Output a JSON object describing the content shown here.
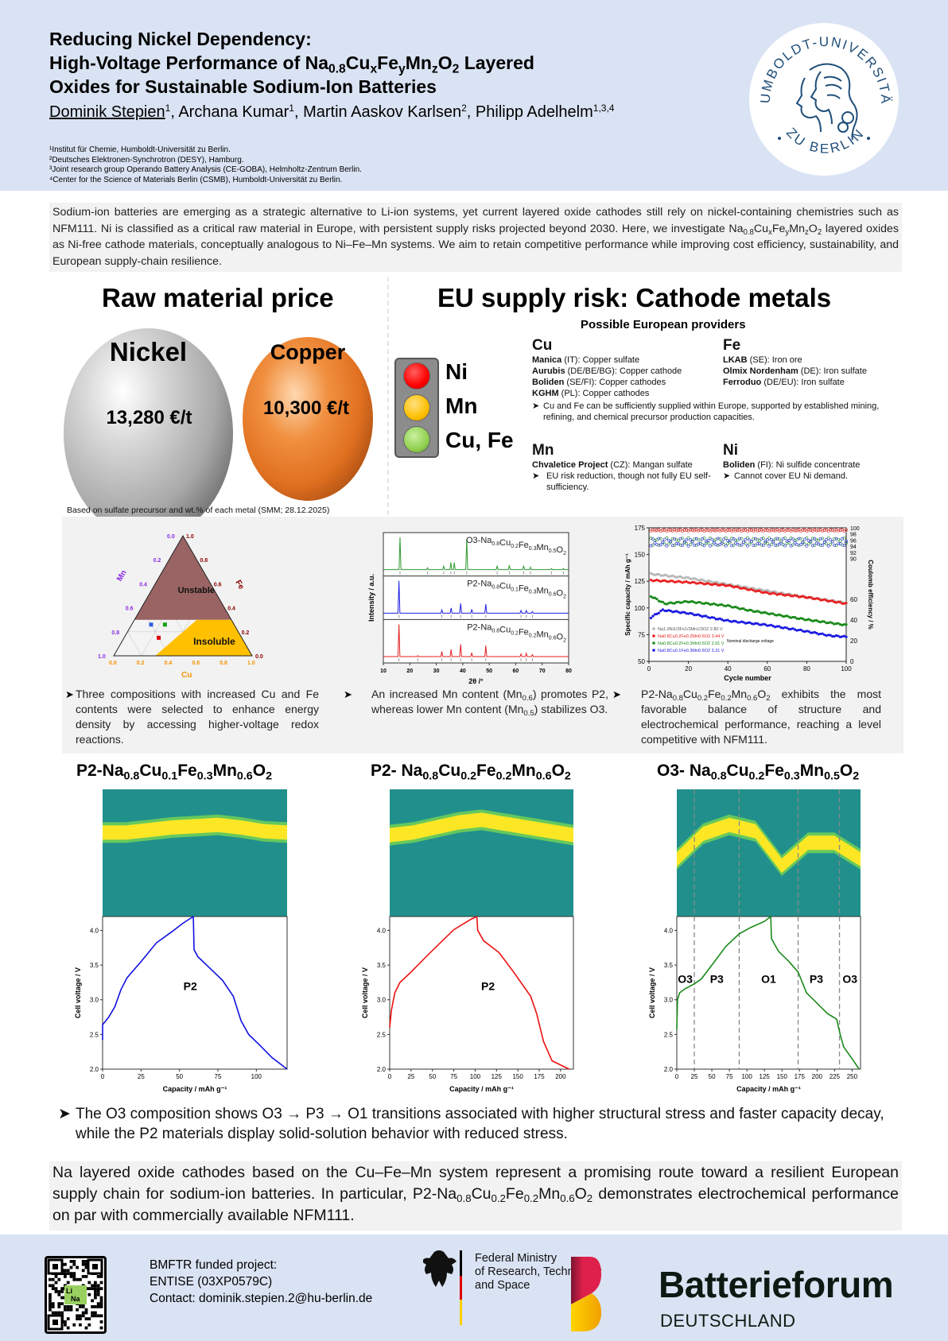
{
  "header": {
    "title_line1": "Reducing Nickel Dependency:",
    "title_line2_pre": "High-Voltage Performance of Na",
    "title_line2_post": " Layered",
    "title_line3": "Oxides for Sustainable Sodium-Ion Batteries",
    "formula": {
      "na": "0.8",
      "x": "x",
      "y": "y",
      "z": "z",
      "o": "2"
    },
    "authors": [
      {
        "name": "Dominik Stepien",
        "sup": "1",
        "presenting": true
      },
      {
        "name": "Archana Kumar",
        "sup": "1"
      },
      {
        "name": "Martin Aaskov Karlsen",
        "sup": "2"
      },
      {
        "name": "Philipp Adelhelm",
        "sup": "1,3,4"
      }
    ],
    "affiliations": [
      "¹Institut für Chemie, Humboldt-Universität zu Berlin.",
      "²Deutsches Elektronen-Synchrotron (DESY), Hamburg.",
      "³Joint research group Operando Battery Analysis (CE-GOBA), Helmholtz-Zentrum Berlin.",
      "⁴Center for the Science of Materials Berlin (CSMB), Humboldt-Universität zu Berlin."
    ],
    "seal_top_text": "HUMBOLDT-UNIVERSITÄT",
    "seal_bottom_text": "ZU BERLIN",
    "seal_icon": "university-seal-icon"
  },
  "intro": {
    "part1": "Sodium-ion batteries are emerging as a strategic alternative to Li-ion systems, yet current layered oxide cathodes still rely on nickel-containing chemistries such as NFM111. Ni is classified as a critical raw material in Europe, with persistent supply risks projected beyond 2030. Here, we investigate Na",
    "part2": " layered oxides as Ni-free cathode materials, conceptually analogous to Ni–Fe–Mn systems. We aim to retain competitive performance while improving cost efficiency, sustainability, and European supply-chain resilience."
  },
  "price": {
    "heading": "Raw material price",
    "nickel_label": "Nickel",
    "nickel_price": "13,280 €/t",
    "copper_label": "Copper",
    "copper_price": "10,300  €/t",
    "note": "Based on sulfate precursor and wt.% of each metal (SMM; 28.12.2025)"
  },
  "supply": {
    "heading": "EU supply risk: Cathode metals",
    "traffic_light": [
      {
        "label": "Ni",
        "color": "#ff0000",
        "risk": "high"
      },
      {
        "label": "Mn",
        "color": "#ffc000",
        "risk": "medium"
      },
      {
        "label": "Cu, Fe",
        "color": "#92d050",
        "risk": "low"
      }
    ],
    "providers_title": "Possible European providers",
    "cu": {
      "element": "Cu",
      "entries": [
        {
          "company": "Manica",
          "detail": " (IT): Copper sulfate"
        },
        {
          "company": "Aurubis",
          "detail": " (DE/BE/BG): Copper cathode"
        },
        {
          "company": "Boliden",
          "detail": " (SE/FI): Copper cathodes"
        },
        {
          "company": "KGHM",
          "detail": " (PL): Copper cathodes"
        }
      ],
      "bullet": "Cu and Fe can be sufficiently supplied within Europe, supported by established mining, refining, and chemical precursor production capacities."
    },
    "fe": {
      "element": "Fe",
      "entries": [
        {
          "company": "LKAB",
          "detail": " (SE): Iron ore"
        },
        {
          "company": "Olmix Nordenham",
          "detail": " (DE): Iron sulfate"
        },
        {
          "company": "Ferroduo",
          "detail": " (DE/EU): Iron sulfate"
        }
      ]
    },
    "mn": {
      "element": "Mn",
      "entries": [
        {
          "company": "Chvaletice Project",
          "detail": " (CZ): Mangan sulfate"
        }
      ],
      "bullet": "EU risk reduction, though not fully EU self-sufficiency."
    },
    "ni": {
      "element": "Ni",
      "entries": [
        {
          "company": "Boliden",
          "detail": " (FI): Ni sulfide concentrate"
        }
      ],
      "bullet": "Cannot cover EU Ni demand."
    }
  },
  "bullets": {
    "b1": "Three compositions with increased Cu and Fe contents were selected to enhance energy density by accessing higher-voltage redox reactions.",
    "b2_pre": "An increased Mn content (Mn",
    "b2_sub1": "0.6",
    "b2_mid": ") promotes P2, whereas lower Mn content (Mn",
    "b2_sub2": "0.5",
    "b2_post": ") stabilizes O3.",
    "b3_post": " exhibits the most favorable balance of structure and electrochemical performance, reaching a level competitive with NFM111.",
    "summary": "The O3 composition shows O3 → P3 → O1 transitions associated with higher structural stress and faster capacity decay, while the P2 materials display solid-solution behavior with reduced stress."
  },
  "conclusion": {
    "pre": "Na layered oxide cathodes based on the Cu–Fe–Mn system represent a promising route toward a resilient European supply chain for sodium-ion batteries. In particular, P2-Na",
    "post": " demonstrates electrochemical performance on par with commercially available NFM111."
  },
  "footer": {
    "project_line": "BMFTR funded project:",
    "project_id": "ENTISE (03XP0579C)",
    "contact": "Contact: dominik.stepien.2@hu-berlin.de",
    "qr_badge_li": "Li",
    "qr_badge_na": "Na",
    "ministry_line1": "Federal Ministry",
    "ministry_line2": "of Research, Technology",
    "ministry_line3": "and Space",
    "bf_name": "Batterieforum",
    "bf_sub": "DEUTSCHLAND"
  },
  "chart_data": [
    {
      "id": "ternary",
      "type": "ternary",
      "axes": {
        "bottom": "Cu",
        "left": "Mn",
        "right": "Fe"
      },
      "ticks": [
        "0.0",
        "0.2",
        "0.4",
        "0.6",
        "0.8",
        "1.0"
      ],
      "regions": [
        {
          "label": "Unstable",
          "color": "#9a6464",
          "rule": "Fe+Cu > ... (Mn < 0.7)"
        },
        {
          "label": "Insoluble",
          "color": "#ffc000",
          "rule": "Cu > 0.3"
        }
      ],
      "points": [
        {
          "name": "Cu0.2Fe0.2Mn0.6",
          "color": "#e00000",
          "cu": 0.25,
          "fe": 0.15,
          "mn": 0.6
        },
        {
          "name": "Cu0.1Fe0.3Mn0.6",
          "color": "#3060e0",
          "cu": 0.14,
          "fe": 0.26,
          "mn": 0.6
        },
        {
          "name": "Cu0.2Fe0.3Mn0.5",
          "color": "#10a010",
          "cu": 0.24,
          "fe": 0.26,
          "mn": 0.5
        }
      ],
      "axis_colors": {
        "cu": "#f39200",
        "mn": "#8b2be2",
        "fe": "#8b0000"
      }
    },
    {
      "id": "xrd",
      "type": "line",
      "xlabel": "2θ /°",
      "ylabel": "Intensity / a.u.",
      "xlim": [
        10,
        80
      ],
      "xticks": [
        10,
        20,
        30,
        40,
        50,
        60,
        70,
        80
      ],
      "series": [
        {
          "name": "O3-Na0.8Cu0.2Fe0.3Mn0.5O2",
          "label_pre": "O3-Na",
          "subs": [
            "0.8",
            "0.2",
            "0.3",
            "0.5",
            "2"
          ],
          "color": "#2e9a2e",
          "peaks": [
            [
              16.3,
              1.0
            ],
            [
              26.7,
              0.06
            ],
            [
              32.8,
              0.12
            ],
            [
              35.5,
              0.22
            ],
            [
              36.8,
              0.22
            ],
            [
              41.5,
              0.95
            ],
            [
              53.0,
              0.12
            ],
            [
              57.6,
              0.14
            ],
            [
              63.0,
              0.12
            ],
            [
              65.6,
              0.08
            ],
            [
              73.5,
              0.04
            ],
            [
              78.0,
              0.04
            ]
          ]
        },
        {
          "name": "P2-Na0.8Cu0.1Fe0.3Mn0.6O2",
          "label_pre": "P2-Na",
          "subs": [
            "0.8",
            "0.1",
            "0.3",
            "0.6",
            "2"
          ],
          "color": "#2020e0",
          "peaks": [
            [
              15.9,
              1.0
            ],
            [
              32.1,
              0.1
            ],
            [
              35.6,
              0.16
            ],
            [
              39.2,
              0.3
            ],
            [
              43.4,
              0.12
            ],
            [
              48.7,
              0.28
            ],
            [
              62.0,
              0.08
            ],
            [
              64.0,
              0.08
            ],
            [
              66.3,
              0.05
            ]
          ]
        },
        {
          "name": "P2-Na0.8Cu0.2Fe0.2Mn0.6O2",
          "label_pre": "P2-Na",
          "subs": [
            "0.8",
            "0.2",
            "0.2",
            "0.6",
            "2"
          ],
          "color": "#e02020",
          "peaks": [
            [
              15.9,
              1.0
            ],
            [
              23.0,
              0.03
            ],
            [
              32.1,
              0.16
            ],
            [
              35.6,
              0.22
            ],
            [
              39.2,
              0.38
            ],
            [
              43.4,
              0.12
            ],
            [
              48.7,
              0.34
            ],
            [
              62.0,
              0.08
            ],
            [
              64.0,
              0.1
            ],
            [
              66.3,
              0.06
            ]
          ]
        }
      ]
    },
    {
      "id": "cycling",
      "type": "scatter",
      "xlabel": "Cycle number",
      "ylabel": "Specific capacity / mAh g⁻¹",
      "ylabel_right": "Coulomb efficiency / %",
      "xlim": [
        0,
        100
      ],
      "ylim": [
        50,
        175
      ],
      "xticks": [
        0,
        20,
        40,
        60,
        80,
        100
      ],
      "yticks": [
        50,
        75,
        100,
        125,
        150,
        175
      ],
      "yticks_right_lower": [
        0,
        20,
        40,
        60
      ],
      "yticks_right_upper": [
        90,
        92,
        94,
        96,
        98,
        100
      ],
      "legend_note": "Nominal discharge voltage",
      "series": [
        {
          "name": "Na1.0Ni1/3Fe1/3Mn1/3O2",
          "voltage": "2.80 V",
          "color": "#b8b8b8",
          "capacity": [
            [
              0,
              132
            ],
            [
              20,
              128
            ],
            [
              40,
              122
            ],
            [
              60,
              116
            ],
            [
              80,
              110
            ],
            [
              100,
              105
            ]
          ],
          "ce": 99.3
        },
        {
          "name": "Na0.8Cu0.2Fe0.2Mn0.6O2",
          "voltage": "3.44 V",
          "color": "#e82020",
          "capacity": [
            [
              0,
              126
            ],
            [
              20,
              124
            ],
            [
              40,
              121
            ],
            [
              60,
              114
            ],
            [
              80,
              110
            ],
            [
              100,
              104
            ]
          ],
          "ce": 99.2
        },
        {
          "name": "Na0.8Cu0.2Fe0.3Mn0.5O2",
          "voltage": "2.91 V",
          "color": "#1a8a1a",
          "capacity": [
            [
              0,
              112
            ],
            [
              8,
              104
            ],
            [
              20,
              106
            ],
            [
              40,
              102
            ],
            [
              50,
              98
            ],
            [
              60,
              95
            ],
            [
              80,
              89
            ],
            [
              100,
              84
            ]
          ],
          "ce": 95.5
        },
        {
          "name": "Na0.8Cu0.1Fe0.3Mn0.6O2",
          "voltage": "3.31 V",
          "color": "#1a1ae0",
          "capacity": [
            [
              0,
              90
            ],
            [
              7,
              98
            ],
            [
              20,
              95
            ],
            [
              40,
              88
            ],
            [
              60,
              84
            ],
            [
              80,
              78
            ],
            [
              92,
              74
            ],
            [
              100,
              73
            ]
          ],
          "ce": 95.3
        }
      ]
    },
    {
      "id": "gcpl-1",
      "type": "line",
      "title_pre": "P2-Na",
      "title_subs": [
        "0.8",
        "0.1",
        "0.3",
        "0.6",
        "2"
      ],
      "xlabel": "Capacity / mAh g⁻¹",
      "ylabel": "Cell voltage / V",
      "xlim": [
        0,
        120
      ],
      "ylim": [
        2.0,
        4.2
      ],
      "xticks": [
        0,
        25,
        50,
        75,
        100
      ],
      "yticks": [
        2.0,
        2.5,
        3.0,
        3.5,
        4.0
      ],
      "color": "#1010e0",
      "phase_labels": [
        {
          "label": "P2",
          "x": 57,
          "y": 3.2
        }
      ],
      "charge": [
        [
          0,
          2.42
        ],
        [
          0,
          2.64
        ],
        [
          4,
          2.75
        ],
        [
          8,
          2.9
        ],
        [
          12,
          3.15
        ],
        [
          16,
          3.32
        ],
        [
          25,
          3.55
        ],
        [
          35,
          3.82
        ],
        [
          45,
          3.98
        ],
        [
          52,
          4.1
        ],
        [
          59,
          4.2
        ]
      ],
      "discharge": [
        [
          59,
          4.2
        ],
        [
          59.5,
          3.72
        ],
        [
          62,
          3.62
        ],
        [
          70,
          3.45
        ],
        [
          78,
          3.28
        ],
        [
          85,
          3.05
        ],
        [
          90,
          2.7
        ],
        [
          95,
          2.5
        ],
        [
          102,
          2.35
        ],
        [
          110,
          2.17
        ],
        [
          120,
          2.0
        ]
      ],
      "heatmap": {
        "band_center": [
          0.34,
          0.34,
          0.32,
          0.3,
          0.29,
          0.28,
          0.3,
          0.33,
          0.34
        ],
        "colormap": "viridis"
      }
    },
    {
      "id": "gcpl-2",
      "type": "line",
      "title_pre": "P2- Na",
      "title_subs": [
        "0.8",
        "0.2",
        "0.2",
        "0.6",
        "2"
      ],
      "xlabel": "Capacity / mAh g⁻¹",
      "ylabel": "Cell voltage / V",
      "xlim": [
        0,
        215
      ],
      "ylim": [
        2.0,
        4.2
      ],
      "xticks": [
        0,
        25,
        50,
        75,
        100,
        125,
        150,
        175,
        200
      ],
      "yticks": [
        2.0,
        2.5,
        3.0,
        3.5,
        4.0
      ],
      "color": "#ee1010",
      "phase_labels": [
        {
          "label": "P2",
          "x": 115,
          "y": 3.2
        }
      ],
      "charge": [
        [
          0,
          2.6
        ],
        [
          2,
          2.85
        ],
        [
          6,
          3.1
        ],
        [
          12,
          3.25
        ],
        [
          25,
          3.4
        ],
        [
          45,
          3.65
        ],
        [
          75,
          4.01
        ],
        [
          95,
          4.16
        ],
        [
          102,
          4.2
        ]
      ],
      "discharge": [
        [
          102,
          4.2
        ],
        [
          103,
          4.0
        ],
        [
          110,
          3.85
        ],
        [
          128,
          3.68
        ],
        [
          145,
          3.4
        ],
        [
          165,
          3.05
        ],
        [
          172,
          2.8
        ],
        [
          180,
          2.4
        ],
        [
          190,
          2.12
        ],
        [
          200,
          2.06
        ],
        [
          210,
          2.0
        ]
      ],
      "heatmap": {
        "band_center": [
          0.36,
          0.34,
          0.3,
          0.26,
          0.24,
          0.27,
          0.3,
          0.33,
          0.36
        ],
        "colormap": "viridis"
      }
    },
    {
      "id": "gcpl-3",
      "type": "line",
      "title_pre": "O3- Na",
      "title_subs": [
        "0.8",
        "0.2",
        "0.3",
        "0.5",
        "2"
      ],
      "xlabel": "Capacity / mAh g⁻¹",
      "ylabel": "Cell voltage / V",
      "xlim": [
        0,
        262
      ],
      "ylim": [
        2.0,
        4.2
      ],
      "xticks": [
        0,
        25,
        50,
        75,
        100,
        125,
        150,
        175,
        200,
        225,
        250
      ],
      "yticks": [
        2.0,
        2.5,
        3.0,
        3.5,
        4.0
      ],
      "color": "#1a8a1a",
      "phase_boundaries": [
        25,
        89,
        173,
        232
      ],
      "phase_labels": [
        {
          "label": "O3",
          "x": 12,
          "y": 3.3
        },
        {
          "label": "P3",
          "x": 57,
          "y": 3.3
        },
        {
          "label": "O1",
          "x": 131,
          "y": 3.3
        },
        {
          "label": "P3",
          "x": 199,
          "y": 3.3
        },
        {
          "label": "O3",
          "x": 247,
          "y": 3.3
        }
      ],
      "charge": [
        [
          0,
          2.57
        ],
        [
          1,
          3.0
        ],
        [
          4,
          3.1
        ],
        [
          12,
          3.16
        ],
        [
          25,
          3.23
        ],
        [
          35,
          3.3
        ],
        [
          50,
          3.5
        ],
        [
          70,
          3.77
        ],
        [
          89,
          3.95
        ],
        [
          105,
          4.04
        ],
        [
          125,
          4.13
        ],
        [
          134,
          4.2
        ]
      ],
      "discharge": [
        [
          134,
          4.2
        ],
        [
          135,
          3.88
        ],
        [
          145,
          3.7
        ],
        [
          160,
          3.55
        ],
        [
          173,
          3.4
        ],
        [
          185,
          3.1
        ],
        [
          200,
          2.95
        ],
        [
          215,
          2.8
        ],
        [
          228,
          2.72
        ],
        [
          233,
          2.5
        ],
        [
          238,
          2.32
        ],
        [
          250,
          2.15
        ],
        [
          260,
          2.0
        ]
      ],
      "heatmap": {
        "band_center": [
          0.55,
          0.35,
          0.28,
          0.33,
          0.6,
          0.42,
          0.42,
          0.55
        ],
        "colormap": "viridis"
      }
    }
  ]
}
